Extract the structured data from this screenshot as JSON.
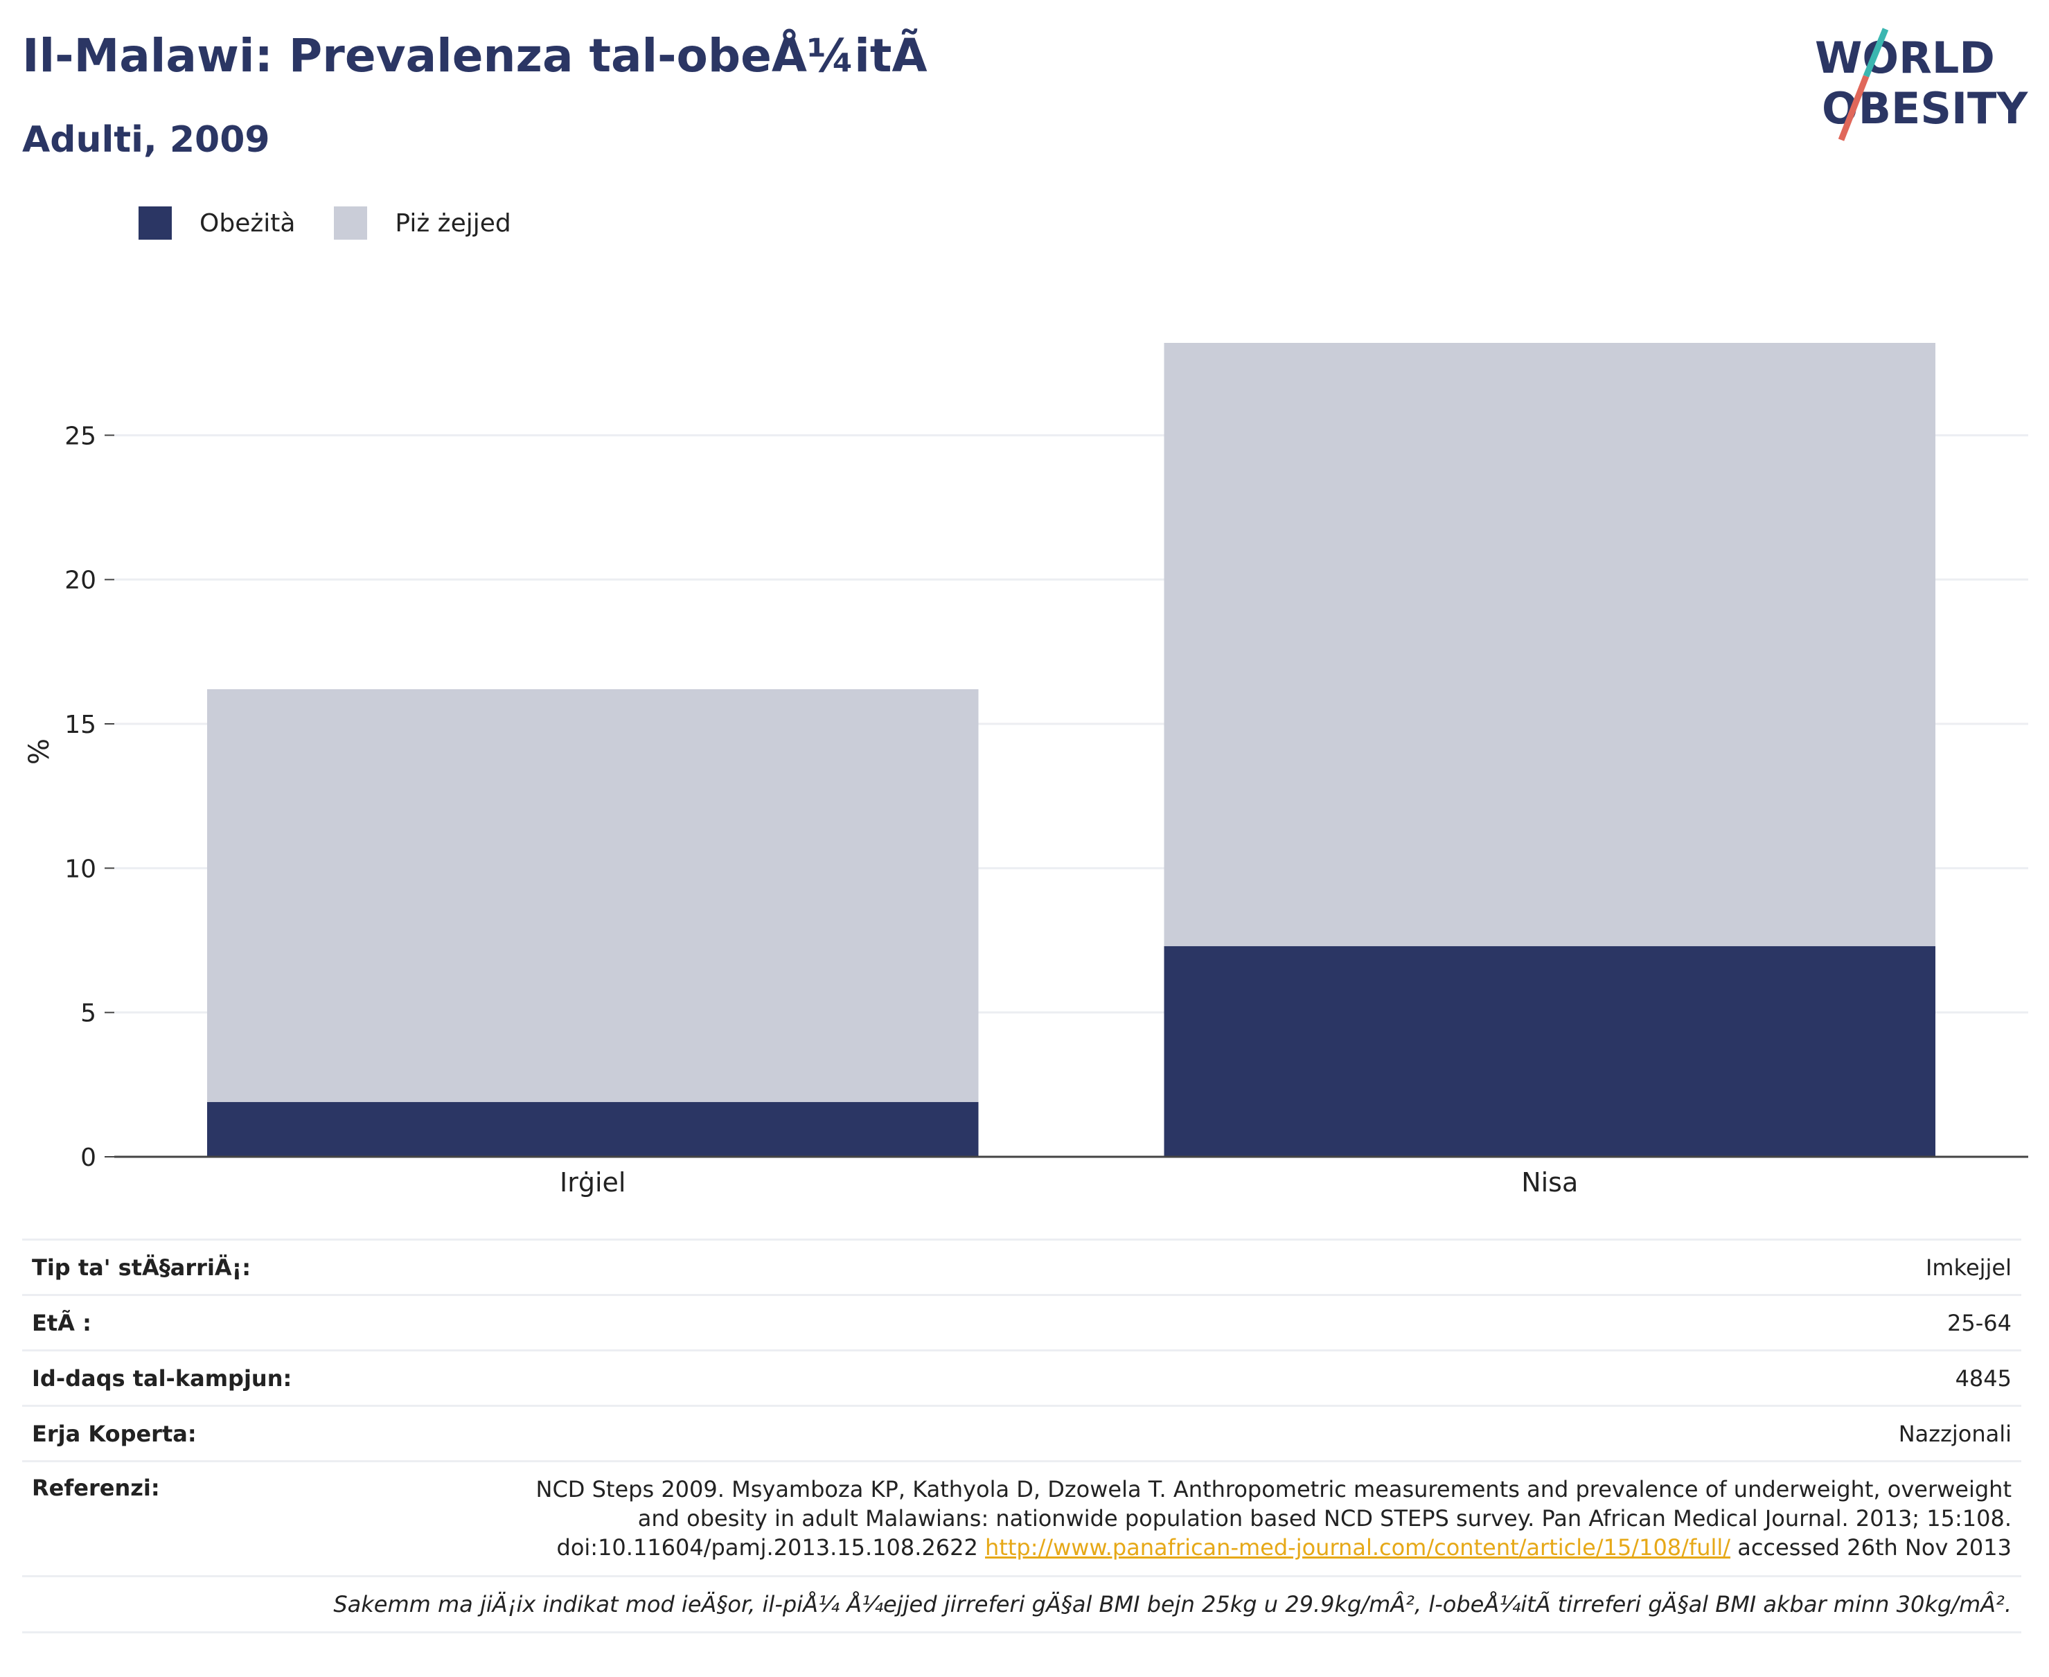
{
  "header": {
    "title": "Il-Malawi: Prevalenza tal-obeÅ¼itÃ",
    "subtitle": "Adulti, 2009"
  },
  "logo": {
    "line1": "WORLD",
    "line2": "OBESITY"
  },
  "colors": {
    "obesity": "#2b3664",
    "overweight": "#cacdd8",
    "accent_teal": "#3bb6b0",
    "accent_red": "#e0675a",
    "link": "#e6a817"
  },
  "chart_data": {
    "type": "bar",
    "stacked": true,
    "categories": [
      "Irġiel",
      "Nisa"
    ],
    "series": [
      {
        "name": "Obeżità",
        "values": [
          1.9,
          7.3
        ]
      },
      {
        "name": "Piż żejjed",
        "values": [
          14.3,
          20.9
        ]
      }
    ],
    "xlabel": "",
    "ylabel": "%",
    "ylim": [
      0,
      30
    ],
    "yticks": [
      0,
      5,
      10,
      15,
      20,
      25
    ],
    "grid": true,
    "legend": "top-left"
  },
  "info": {
    "rows": [
      {
        "key": "Tip ta' stÄ§arriÄ¡:",
        "value": "Imkejjel"
      },
      {
        "key": "EtÃ :",
        "value": "25-64"
      },
      {
        "key": "Id-daqs tal-kampjun:",
        "value": "4845"
      },
      {
        "key": "Erja Koperta:",
        "value": "Nazzjonali"
      }
    ],
    "reference": {
      "key": "Referenzi:",
      "text": "NCD Steps 2009. Msyamboza KP, Kathyola D, Dzowela T. Anthropometric measurements and prevalence of underweight, overweight and obesity in adult Malawians: nationwide population based NCD STEPS survey. Pan African Medical Journal. 2013; 15:108. doi:10.11604/pamj.2013.15.108.2622",
      "link": "http://www.panafrican-med-journal.com/content/article/15/108/full/",
      "accessed": "accessed 26th Nov 2013"
    },
    "note": "Sakemm ma jiÄ¡ix indikat mod ieÄ§or, il-piÅ¼ Å¼ejjed jirreferi gÄ§al BMI bejn 25kg u 29.9kg/mÂ², l-obeÅ¼itÃ  tirreferi gÄ§al BMI akbar minn 30kg/mÂ²."
  }
}
